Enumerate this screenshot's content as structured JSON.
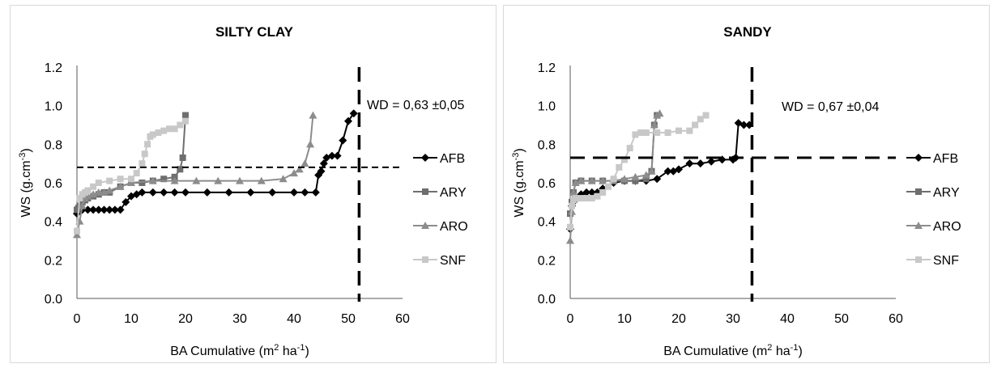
{
  "chart_data": [
    {
      "type": "line",
      "title": "SILTY CLAY",
      "xlabel": "BA Cumulative  (m",
      "xlabel_unit": "2",
      "xlabel_tail": " ha",
      "xlabel_exp": "-1",
      "xlabel_close": ")",
      "ylabel": "WS  (g.cm",
      "ylabel_exp": "-3",
      "ylabel_close": ")",
      "xlim": [
        0,
        60
      ],
      "ylim": [
        0,
        1.2
      ],
      "xticks": [
        "0",
        "10",
        "20",
        "30",
        "40",
        "50",
        "60"
      ],
      "yticks": [
        "0.0",
        "0.2",
        "0.4",
        "0.6",
        "0.8",
        "1.0",
        "1.2"
      ],
      "grid": false,
      "legend": "right",
      "annotation": "WD = 0,63 ±0,05",
      "vline_x": 52,
      "hline_y": 0.68,
      "series": [
        {
          "name": "AFB",
          "color": "#000000",
          "marker": "diamond",
          "x": [
            0,
            0.5,
            1,
            2,
            3,
            4,
            5,
            6,
            7,
            8,
            9,
            10,
            11,
            12,
            14,
            16,
            18,
            20,
            24,
            28,
            32,
            36,
            40,
            42,
            44,
            44.5,
            45,
            45.5,
            46,
            47,
            48,
            49,
            50,
            51
          ],
          "y": [
            0.44,
            0.46,
            0.46,
            0.46,
            0.46,
            0.46,
            0.46,
            0.46,
            0.46,
            0.46,
            0.5,
            0.53,
            0.54,
            0.55,
            0.55,
            0.55,
            0.55,
            0.55,
            0.55,
            0.55,
            0.55,
            0.55,
            0.55,
            0.55,
            0.55,
            0.64,
            0.66,
            0.7,
            0.73,
            0.74,
            0.74,
            0.82,
            0.92,
            0.96
          ]
        },
        {
          "name": "ARY",
          "color": "#6e6e6e",
          "marker": "square",
          "x": [
            0,
            0.3,
            0.6,
            1,
            1.5,
            2,
            3,
            4,
            5,
            6,
            8,
            10,
            12,
            14,
            16,
            18,
            19,
            19.5,
            20
          ],
          "y": [
            0.46,
            0.47,
            0.48,
            0.5,
            0.51,
            0.52,
            0.53,
            0.54,
            0.55,
            0.55,
            0.58,
            0.6,
            0.6,
            0.61,
            0.62,
            0.63,
            0.67,
            0.73,
            0.95
          ]
        },
        {
          "name": "ARO",
          "color": "#8c8c8c",
          "marker": "triangle",
          "x": [
            0,
            0.5,
            1,
            1.5,
            2,
            3,
            4,
            5,
            6,
            8,
            10,
            14,
            18,
            22,
            26,
            30,
            34,
            38,
            40,
            41,
            42,
            43,
            43.5
          ],
          "y": [
            0.33,
            0.4,
            0.48,
            0.52,
            0.53,
            0.54,
            0.55,
            0.55,
            0.56,
            0.58,
            0.6,
            0.61,
            0.61,
            0.61,
            0.61,
            0.61,
            0.61,
            0.62,
            0.65,
            0.67,
            0.7,
            0.8,
            0.95
          ]
        },
        {
          "name": "SNF",
          "color": "#c8c8c8",
          "marker": "square",
          "x": [
            0,
            0.5,
            1,
            1.5,
            2,
            3,
            4,
            6,
            8,
            10,
            11,
            12,
            12.5,
            13,
            13.5,
            14,
            15,
            16,
            17,
            18,
            19,
            20
          ],
          "y": [
            0.35,
            0.52,
            0.54,
            0.55,
            0.56,
            0.58,
            0.6,
            0.61,
            0.62,
            0.62,
            0.65,
            0.7,
            0.75,
            0.8,
            0.84,
            0.85,
            0.86,
            0.87,
            0.88,
            0.88,
            0.9,
            0.92
          ]
        }
      ]
    },
    {
      "type": "line",
      "title": "SANDY",
      "xlabel": "BA Cumulative  (m",
      "xlabel_unit": "2",
      "xlabel_tail": " ha",
      "xlabel_exp": "-1",
      "xlabel_close": ")",
      "ylabel": "WS  (g.cm",
      "ylabel_exp": "-3",
      "ylabel_close": ")",
      "xlim": [
        0,
        60
      ],
      "ylim": [
        0,
        1.2
      ],
      "xticks": [
        "0",
        "10",
        "20",
        "30",
        "40",
        "50",
        "60"
      ],
      "yticks": [
        "0.0",
        "0.2",
        "0.4",
        "0.6",
        "0.8",
        "1.0",
        "1.2"
      ],
      "grid": false,
      "legend": "right",
      "annotation": "WD = 0,67 ±0,04",
      "vline_x": 33.5,
      "hline_y": 0.73,
      "series": [
        {
          "name": "AFB",
          "color": "#000000",
          "marker": "diamond",
          "x": [
            0,
            0.3,
            0.6,
            1,
            2,
            3,
            4,
            5,
            6,
            8,
            10,
            12,
            14,
            16,
            18,
            19,
            20,
            22,
            24,
            26,
            28,
            30,
            30.5,
            31,
            32,
            33
          ],
          "y": [
            0.36,
            0.48,
            0.5,
            0.52,
            0.54,
            0.55,
            0.55,
            0.55,
            0.57,
            0.6,
            0.61,
            0.61,
            0.61,
            0.62,
            0.66,
            0.66,
            0.67,
            0.7,
            0.7,
            0.71,
            0.72,
            0.72,
            0.73,
            0.91,
            0.9,
            0.9
          ]
        },
        {
          "name": "ARY",
          "color": "#6e6e6e",
          "marker": "square",
          "x": [
            0,
            0.3,
            0.6,
            1,
            2,
            4,
            6,
            8,
            10,
            12,
            14,
            15,
            15.5,
            16
          ],
          "y": [
            0.44,
            0.5,
            0.55,
            0.6,
            0.61,
            0.61,
            0.61,
            0.61,
            0.61,
            0.61,
            0.62,
            0.66,
            0.9,
            0.95
          ]
        },
        {
          "name": "ARO",
          "color": "#8c8c8c",
          "marker": "triangle",
          "x": [
            0,
            0.3,
            0.6,
            1,
            2,
            4,
            6,
            8,
            10,
            12,
            14,
            15,
            15.5,
            16,
            16.5
          ],
          "y": [
            0.3,
            0.45,
            0.55,
            0.6,
            0.61,
            0.61,
            0.61,
            0.61,
            0.62,
            0.63,
            0.64,
            0.66,
            0.9,
            0.95,
            0.96
          ]
        },
        {
          "name": "SNF",
          "color": "#c8c8c8",
          "marker": "square",
          "x": [
            0,
            0.3,
            0.6,
            1,
            2,
            3,
            4,
            5,
            6,
            7,
            8,
            9,
            10,
            11,
            12,
            13,
            14,
            16,
            18,
            20,
            22,
            23,
            24,
            25
          ],
          "y": [
            0.37,
            0.48,
            0.51,
            0.52,
            0.52,
            0.52,
            0.52,
            0.53,
            0.55,
            0.58,
            0.62,
            0.68,
            0.72,
            0.78,
            0.85,
            0.86,
            0.86,
            0.86,
            0.86,
            0.87,
            0.87,
            0.9,
            0.93,
            0.95
          ]
        }
      ]
    }
  ]
}
